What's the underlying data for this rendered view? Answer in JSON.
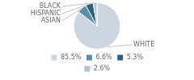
{
  "chart_data": {
    "type": "pie",
    "categories": [
      "WHITE",
      "ASIAN",
      "HISPANIC",
      "BLACK"
    ],
    "values": [
      85.5,
      6.6,
      5.3,
      2.6
    ],
    "value_labels": [
      "85.5%",
      "6.6%",
      "5.3%",
      "2.6%"
    ],
    "colors": [
      "#ccd6e0",
      "#5b8fa8",
      "#2e5f7e",
      "#b0c4d0"
    ],
    "legend": "bottom"
  }
}
